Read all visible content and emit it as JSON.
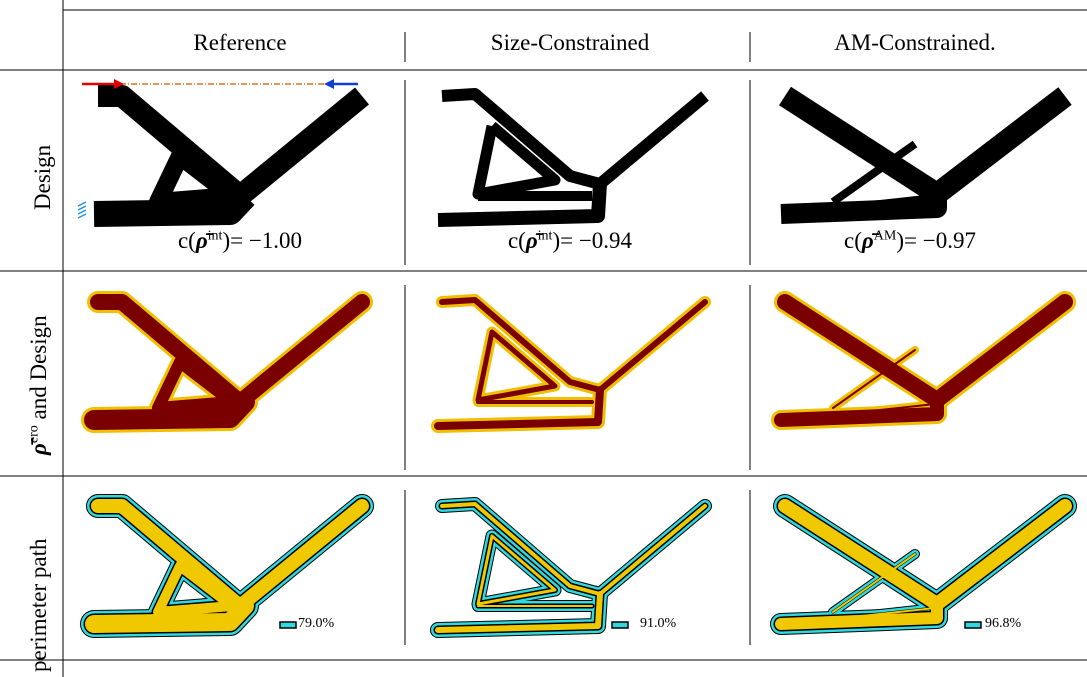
{
  "table": {
    "header": [
      "Reference",
      "Size-Constrained",
      "AM-Constrained."
    ],
    "row_labels": [
      {
        "text": "Design"
      },
      {
        "symbol": "ρ̄",
        "sup": "ero",
        "text": " and Design"
      },
      {
        "text": "perimeter path"
      }
    ],
    "captions": [
      {
        "prefix": "c(",
        "symbol": "ρ̄",
        "sup": "int",
        "suffix": ")= −1.00"
      },
      {
        "prefix": "c(",
        "symbol": "ρ̄",
        "sup": "int",
        "suffix": ")= −0.94"
      },
      {
        "prefix": "c(",
        "symbol": "ρ̄",
        "sup": "AM",
        "suffix": ")= −0.97"
      }
    ],
    "coverage": [
      "79.0%",
      "91.0%",
      "96.8%"
    ]
  }
}
